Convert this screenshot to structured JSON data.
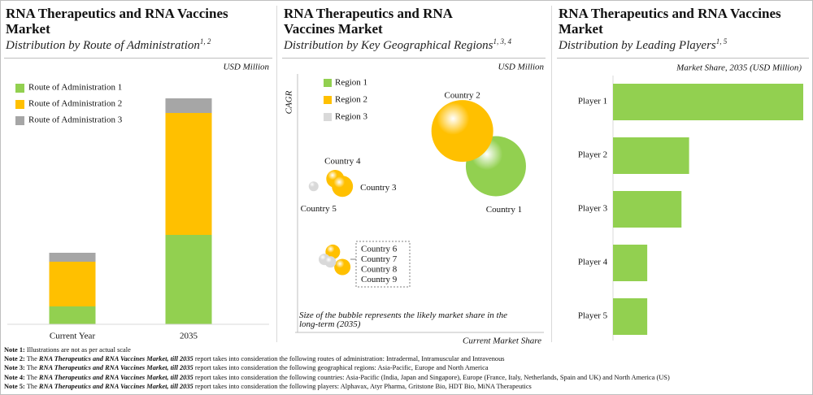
{
  "chart_data": [
    {
      "type": "stacked-bar",
      "title": "RNA Therapeutics and RNA Vaccines Market",
      "subtitle": "Distribution by Route of Administration",
      "subtitle_note": "1, 2",
      "unit": "USD Million",
      "categories": [
        "Current Year",
        "2035"
      ],
      "ylim": [
        0,
        300
      ],
      "series": [
        {
          "name": "Route of Administration 1",
          "color": "#92d050",
          "values": [
            22,
            110
          ]
        },
        {
          "name": "Route of Administration 2",
          "color": "#ffc000",
          "values": [
            55,
            150
          ]
        },
        {
          "name": "Route of Administration 3",
          "color": "#a6a6a6",
          "values": [
            11,
            18
          ]
        }
      ]
    },
    {
      "type": "bubble",
      "title": "RNA Therapeutics and RNA Vaccines Market",
      "subtitle": "Distribution by Key Geographical Regions",
      "subtitle_note": "1, 3, 4",
      "unit": "USD Million",
      "xlabel": "Current Market Share",
      "ylabel": "CAGR",
      "note": "Size of the bubble represents the likely market share in the long-term (2035)",
      "xlim": [
        0,
        100
      ],
      "ylim": [
        0,
        100
      ],
      "series": [
        {
          "name": "Region 1",
          "color": "#92d050",
          "labels": [
            "Country 1"
          ],
          "x": [
            81
          ],
          "values": [
            65
          ],
          "sizes": [
            37
          ]
        },
        {
          "name": "Region 2",
          "color": "#ffc000",
          "labels": [
            "Country 2",
            "Country 4",
            "Country 3",
            "Country 6",
            "Country 9"
          ],
          "x": [
            67,
            14,
            17,
            13,
            17
          ],
          "values": [
            79,
            60,
            57,
            31,
            25
          ],
          "sizes": [
            38,
            11,
            13,
            9,
            10
          ]
        },
        {
          "name": "Region 3",
          "color": "#d9d9d9",
          "labels": [
            "Country 5",
            "Country 7",
            "Country 8"
          ],
          "x": [
            5,
            9.5,
            12
          ],
          "values": [
            57,
            28,
            27
          ],
          "sizes": [
            6,
            7,
            7
          ]
        }
      ]
    },
    {
      "type": "hbar",
      "title": "RNA Therapeutics and RNA Vaccines Market",
      "subtitle": "Distribution by Leading Players",
      "subtitle_note": "1, 5",
      "unit": "Market Share, 2035 (USD Million)",
      "categories": [
        "Player 1",
        "Player 2",
        "Player 3",
        "Player 4",
        "Player 5"
      ],
      "values": [
        100,
        40,
        36,
        18,
        18
      ],
      "color": "#92d050",
      "xlim": [
        0,
        100
      ]
    }
  ],
  "notes": [
    {
      "label": "Note 1:",
      "parts": [
        "Illustrations are not as per actual scale"
      ]
    },
    {
      "label": "Note 2:",
      "parts": [
        "The ",
        "RNA Therapeutics and RNA Vaccines Market, till 2035",
        " report takes into consideration the following routes of administration: Intradermal, Intramuscular and Intravenous"
      ]
    },
    {
      "label": "Note 3:",
      "parts": [
        "The ",
        "RNA Therapeutics and RNA Vaccines Market, till 2035",
        " report takes into consideration the following geographical regions: Asia-Pacific, Europe and North America"
      ]
    },
    {
      "label": "Note 4:",
      "parts": [
        "The ",
        "RNA Therapeutics and RNA Vaccines Market, till 2035",
        " report takes into consideration the following countries: Asia-Pacific (India, Japan and Singapore), Europe (France, Italy, Netherlands, Spain and UK) and North America (US)"
      ]
    },
    {
      "label": "Note 5:",
      "parts": [
        "The ",
        "RNA Therapeutics and RNA Vaccines Market, till 2035",
        " report takes into consideration the following players: Alphavax, Atyr Pharma, Gritstone Bio, HDT Bio, MiNA Therapeutics"
      ]
    }
  ]
}
